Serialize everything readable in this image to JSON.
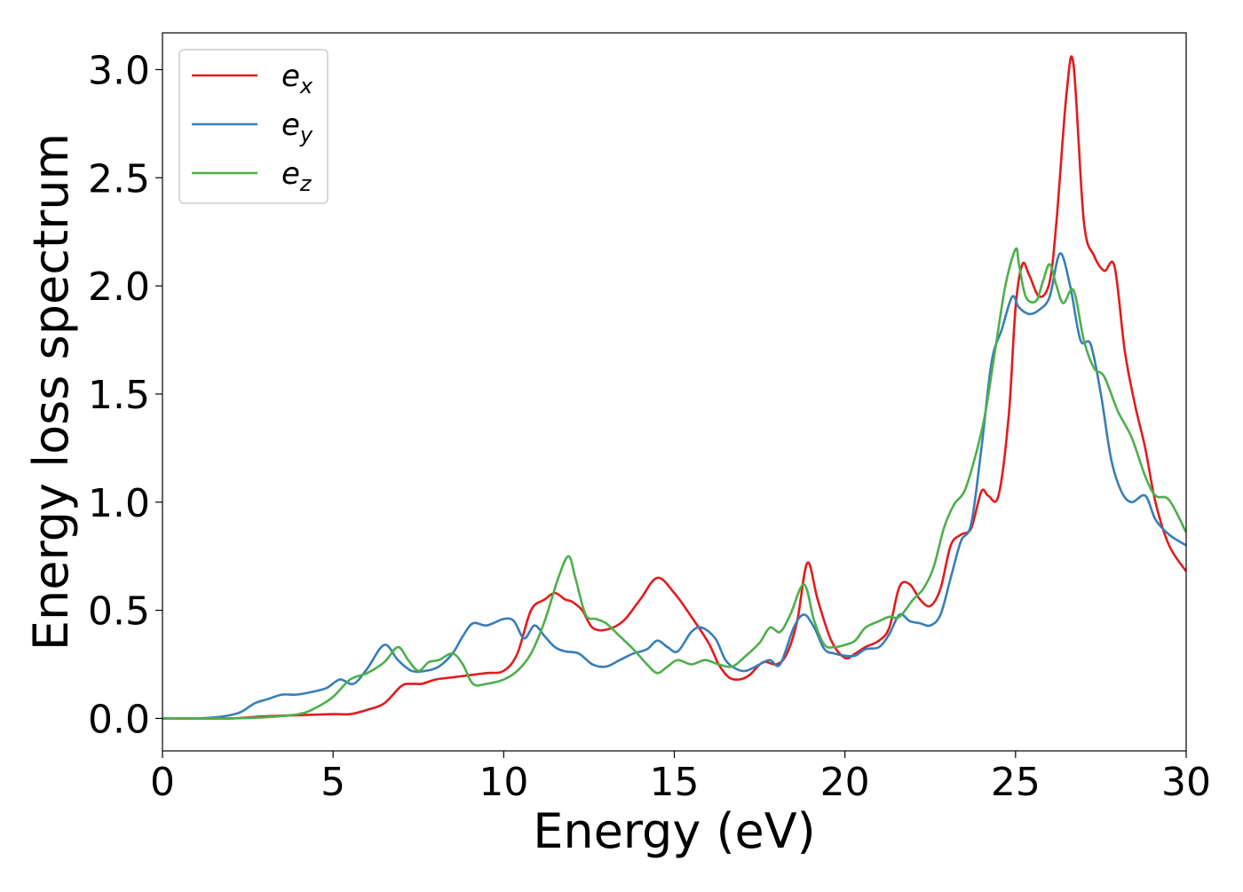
{
  "chart_data": {
    "type": "line",
    "xlabel": "Energy (eV)",
    "ylabel": "Energy loss spectrum",
    "xlim": [
      0,
      30
    ],
    "ylim": [
      -0.15,
      3.17
    ],
    "xticks": [
      "0",
      "5",
      "10",
      "15",
      "20",
      "25",
      "30"
    ],
    "yticks": [
      "0.0",
      "0.5",
      "1.0",
      "1.5",
      "2.0",
      "2.5",
      "3.0"
    ],
    "grid": false,
    "legend_position": "top-left",
    "series": [
      {
        "name": "e_x",
        "legend_base": "e",
        "legend_sub": "x",
        "color": "#e41a1c",
        "x": [
          0,
          1,
          2,
          3,
          4,
          5,
          5.5,
          6,
          6.5,
          7,
          7.3,
          7.6,
          8,
          8.5,
          9,
          9.5,
          10,
          10.4,
          10.8,
          11.2,
          11.5,
          11.8,
          12,
          12.3,
          12.6,
          13,
          13.5,
          14,
          14.5,
          15,
          15.5,
          16,
          16.3,
          16.6,
          16.9,
          17.2,
          17.6,
          18,
          18.3,
          18.6,
          18.9,
          19.2,
          19.6,
          20,
          20.3,
          20.6,
          21,
          21.3,
          21.6,
          21.9,
          22.2,
          22.5,
          22.8,
          23.1,
          23.4,
          23.7,
          24,
          24.2,
          24.5,
          24.8,
          25,
          25.2,
          25.4,
          25.7,
          26,
          26.2,
          26.5,
          26.7,
          27,
          27.3,
          27.6,
          27.9,
          28.2,
          28.5,
          28.8,
          29.1,
          29.5,
          30
        ],
        "values": [
          0,
          0,
          0,
          0.01,
          0.015,
          0.02,
          0.02,
          0.04,
          0.07,
          0.15,
          0.16,
          0.16,
          0.18,
          0.19,
          0.2,
          0.21,
          0.22,
          0.3,
          0.5,
          0.55,
          0.58,
          0.55,
          0.54,
          0.5,
          0.42,
          0.41,
          0.45,
          0.55,
          0.65,
          0.58,
          0.47,
          0.35,
          0.25,
          0.19,
          0.18,
          0.2,
          0.26,
          0.25,
          0.3,
          0.45,
          0.72,
          0.55,
          0.36,
          0.28,
          0.3,
          0.33,
          0.36,
          0.42,
          0.61,
          0.62,
          0.55,
          0.52,
          0.6,
          0.8,
          0.85,
          0.88,
          1.05,
          1.03,
          1.03,
          1.4,
          1.9,
          2.1,
          2.05,
          1.95,
          2.02,
          2.3,
          2.9,
          3.02,
          2.3,
          2.14,
          2.07,
          2.09,
          1.7,
          1.45,
          1.25,
          1.0,
          0.8,
          0.68
        ]
      },
      {
        "name": "e_y",
        "legend_base": "e",
        "legend_sub": "y",
        "color": "#377eb8",
        "x": [
          0,
          1,
          1.8,
          2.3,
          2.7,
          3.1,
          3.5,
          3.9,
          4.3,
          4.8,
          5.2,
          5.6,
          6,
          6.5,
          6.9,
          7.3,
          7.7,
          8.1,
          8.5,
          8.8,
          9.1,
          9.5,
          10,
          10.3,
          10.6,
          10.9,
          11.2,
          11.5,
          11.8,
          12.2,
          12.6,
          13,
          13.4,
          13.8,
          14.2,
          14.5,
          14.8,
          15.1,
          15.5,
          15.8,
          16.2,
          16.5,
          16.8,
          17.1,
          17.5,
          17.8,
          18.1,
          18.5,
          18.8,
          19.1,
          19.4,
          19.7,
          20,
          20.3,
          20.6,
          21,
          21.3,
          21.6,
          21.9,
          22.2,
          22.5,
          22.8,
          23.1,
          23.4,
          23.7,
          24,
          24.3,
          24.6,
          24.9,
          25.1,
          25.4,
          25.7,
          26,
          26.3,
          26.6,
          26.9,
          27.2,
          27.5,
          27.8,
          28.1,
          28.4,
          28.8,
          29.1,
          29.5,
          30
        ],
        "values": [
          0,
          0,
          0.01,
          0.03,
          0.07,
          0.09,
          0.11,
          0.11,
          0.12,
          0.14,
          0.18,
          0.16,
          0.23,
          0.34,
          0.27,
          0.22,
          0.22,
          0.24,
          0.3,
          0.38,
          0.44,
          0.43,
          0.46,
          0.45,
          0.37,
          0.43,
          0.38,
          0.33,
          0.31,
          0.3,
          0.25,
          0.24,
          0.27,
          0.3,
          0.32,
          0.36,
          0.33,
          0.31,
          0.4,
          0.42,
          0.37,
          0.27,
          0.23,
          0.22,
          0.25,
          0.27,
          0.25,
          0.42,
          0.48,
          0.42,
          0.32,
          0.3,
          0.29,
          0.29,
          0.32,
          0.33,
          0.39,
          0.48,
          0.45,
          0.44,
          0.43,
          0.48,
          0.65,
          0.82,
          0.9,
          1.25,
          1.65,
          1.8,
          1.95,
          1.9,
          1.87,
          1.89,
          1.95,
          2.15,
          2.0,
          1.75,
          1.73,
          1.5,
          1.2,
          1.05,
          1.0,
          1.03,
          0.92,
          0.85,
          0.8
        ]
      },
      {
        "name": "e_z",
        "legend_base": "e",
        "legend_sub": "z",
        "color": "#4daf4a",
        "x": [
          0,
          1,
          2,
          3,
          4,
          4.5,
          5,
          5.5,
          6,
          6.5,
          6.9,
          7.2,
          7.5,
          7.8,
          8.1,
          8.5,
          8.8,
          9.1,
          9.5,
          10,
          10.4,
          10.8,
          11.2,
          11.6,
          11.9,
          12.1,
          12.4,
          12.7,
          13,
          13.4,
          13.8,
          14.2,
          14.5,
          14.8,
          15.1,
          15.5,
          15.9,
          16.3,
          16.7,
          17.1,
          17.5,
          17.8,
          18.1,
          18.4,
          18.8,
          19.1,
          19.4,
          19.7,
          20,
          20.3,
          20.6,
          21,
          21.3,
          21.6,
          22,
          22.3,
          22.6,
          22.9,
          23.2,
          23.5,
          23.8,
          24.1,
          24.4,
          24.7,
          25,
          25.1,
          25.3,
          25.6,
          25.8,
          26,
          26.2,
          26.4,
          26.7,
          27,
          27.3,
          27.6,
          28,
          28.4,
          28.8,
          29.1,
          29.5,
          30
        ],
        "values": [
          0,
          0,
          0,
          0.005,
          0.02,
          0.05,
          0.1,
          0.18,
          0.21,
          0.26,
          0.33,
          0.27,
          0.22,
          0.26,
          0.27,
          0.3,
          0.25,
          0.16,
          0.16,
          0.18,
          0.22,
          0.3,
          0.45,
          0.65,
          0.75,
          0.65,
          0.48,
          0.46,
          0.44,
          0.38,
          0.32,
          0.25,
          0.21,
          0.24,
          0.27,
          0.25,
          0.27,
          0.25,
          0.24,
          0.29,
          0.35,
          0.42,
          0.4,
          0.48,
          0.62,
          0.45,
          0.34,
          0.33,
          0.34,
          0.36,
          0.42,
          0.45,
          0.47,
          0.47,
          0.55,
          0.6,
          0.7,
          0.88,
          0.99,
          1.05,
          1.2,
          1.4,
          1.7,
          2.0,
          2.17,
          2.1,
          1.95,
          1.93,
          2.02,
          2.1,
          2.0,
          1.92,
          1.98,
          1.75,
          1.62,
          1.58,
          1.42,
          1.3,
          1.12,
          1.03,
          1.01,
          0.86
        ]
      }
    ]
  }
}
